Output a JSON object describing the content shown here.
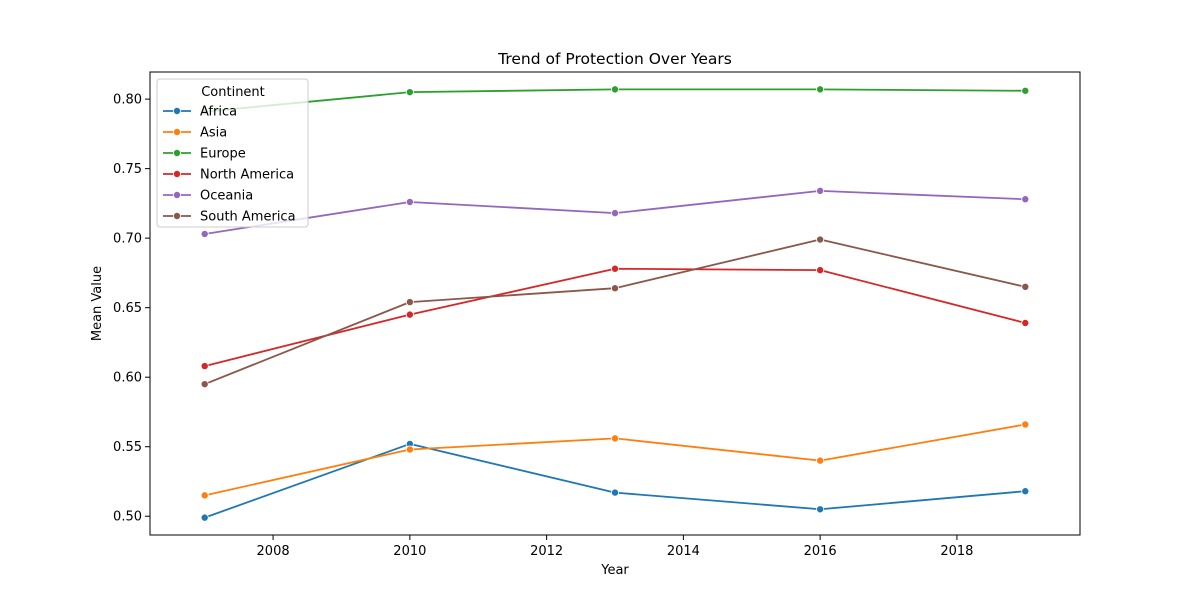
{
  "chart_data": {
    "type": "line",
    "title": "Trend of Protection Over Years",
    "xlabel": "Year",
    "ylabel": "Mean Value",
    "x": [
      2007,
      2010,
      2013,
      2016,
      2019
    ],
    "xlim": [
      2006.2,
      2019.8
    ],
    "ylim": [
      0.4865,
      0.8195
    ],
    "xticks": [
      2008,
      2010,
      2012,
      2014,
      2016,
      2018
    ],
    "yticks": [
      0.5,
      0.55,
      0.6,
      0.65,
      0.7,
      0.75,
      0.8
    ],
    "grid": false,
    "legend": {
      "title": "Continent",
      "position": "top-left"
    },
    "series": [
      {
        "name": "Africa",
        "color": "#1f77b4",
        "values": [
          0.499,
          0.552,
          0.517,
          0.505,
          0.518
        ]
      },
      {
        "name": "Asia",
        "color": "#ff7f0e",
        "values": [
          0.515,
          0.548,
          0.556,
          0.54,
          0.566
        ]
      },
      {
        "name": "Europe",
        "color": "#2ca02c",
        "values": [
          0.791,
          0.805,
          0.807,
          0.807,
          0.806
        ]
      },
      {
        "name": "North America",
        "color": "#d62728",
        "values": [
          0.608,
          0.645,
          0.678,
          0.677,
          0.639
        ]
      },
      {
        "name": "Oceania",
        "color": "#9467bd",
        "values": [
          0.703,
          0.726,
          0.718,
          0.734,
          0.728
        ]
      },
      {
        "name": "South America",
        "color": "#8c564b",
        "values": [
          0.595,
          0.654,
          0.664,
          0.699,
          0.665
        ]
      }
    ]
  }
}
